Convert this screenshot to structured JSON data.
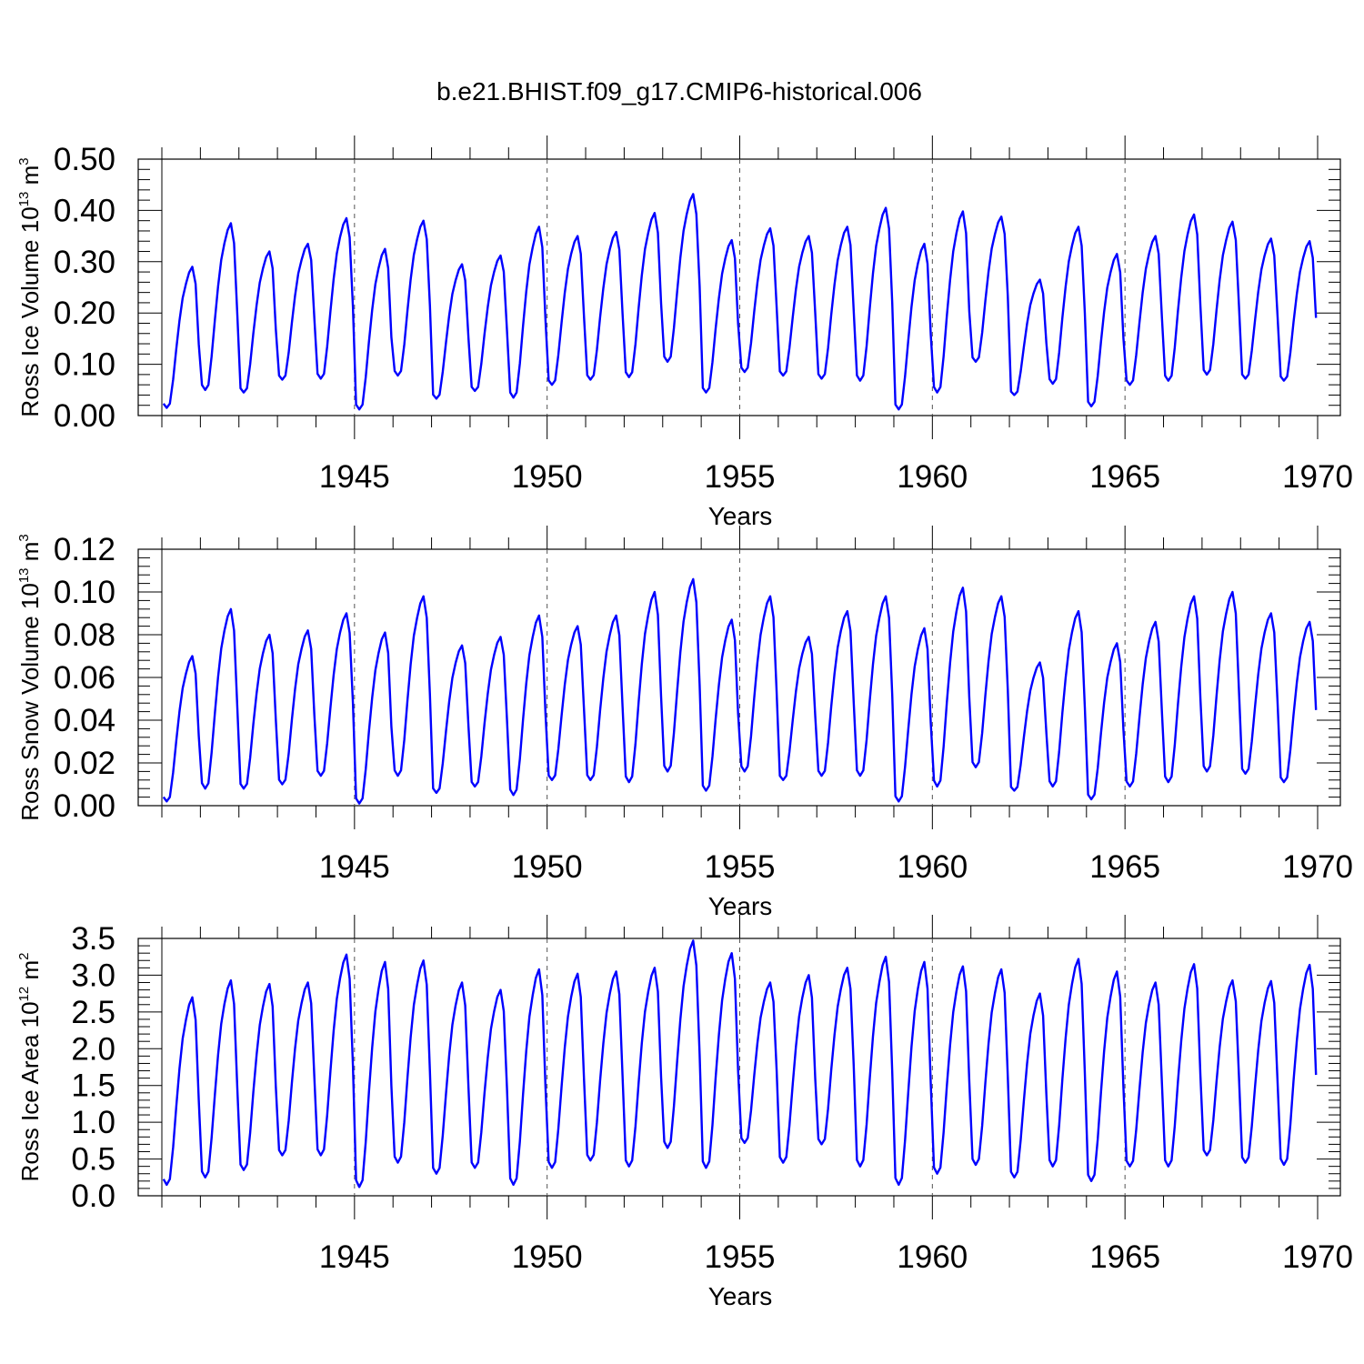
{
  "figure": {
    "title": "b.e21.BHIST.f09_g17.CMIP6-historical.006",
    "line_color": "#0000ff"
  },
  "chart_data": [
    {
      "type": "line",
      "title": "b.e21.BHIST.f09_g17.CMIP6-historical.006",
      "ylabel": "Ross Ice Volume",
      "ylabel_unit": {
        "base": "10",
        "exp": "13",
        "unit": "m",
        "unit_exp": "3"
      },
      "xlabel": "Years",
      "xlim": [
        1940,
        1970
      ],
      "ylim": [
        0,
        0.5
      ],
      "xticks": [
        1945,
        1950,
        1955,
        1960,
        1965,
        1970
      ],
      "xtick_labels": [
        "1945",
        "1950",
        "1955",
        "1960",
        "1965",
        "1970"
      ],
      "yticks": [
        0,
        0.1,
        0.2,
        0.3,
        0.4,
        0.5
      ],
      "ytick_labels": [
        "0.00",
        "0.10",
        "0.20",
        "0.30",
        "0.40",
        "0.50"
      ],
      "grid": "vertical dashed at labeled years",
      "series": [
        {
          "name": "Ross Ice Volume",
          "color": "#0000ff",
          "minima": [
            0.015,
            0.05,
            0.045,
            0.07,
            0.072,
            0.012,
            0.078,
            0.033,
            0.048,
            0.035,
            0.06,
            0.07,
            0.075,
            0.105,
            0.045,
            0.085,
            0.078,
            0.072,
            0.068,
            0.012,
            0.045,
            0.105,
            0.04,
            0.062,
            0.018,
            0.06,
            0.068,
            0.08,
            0.072,
            0.068
          ],
          "maxima": [
            0.29,
            0.375,
            0.32,
            0.335,
            0.385,
            0.325,
            0.38,
            0.295,
            0.312,
            0.368,
            0.35,
            0.358,
            0.395,
            0.432,
            0.342,
            0.365,
            0.35,
            0.368,
            0.405,
            0.335,
            0.398,
            0.388,
            0.265,
            0.368,
            0.315,
            0.35,
            0.392,
            0.378,
            0.345,
            0.34
          ]
        }
      ]
    },
    {
      "type": "line",
      "ylabel": "Ross Snow Volume",
      "ylabel_unit": {
        "base": "10",
        "exp": "13",
        "unit": "m",
        "unit_exp": "3"
      },
      "xlabel": "Years",
      "xlim": [
        1940,
        1970
      ],
      "ylim": [
        0,
        0.12
      ],
      "xticks": [
        1945,
        1950,
        1955,
        1960,
        1965,
        1970
      ],
      "xtick_labels": [
        "1945",
        "1950",
        "1955",
        "1960",
        "1965",
        "1970"
      ],
      "yticks": [
        0,
        0.02,
        0.04,
        0.06,
        0.08,
        0.1,
        0.12
      ],
      "ytick_labels": [
        "0.00",
        "0.02",
        "0.04",
        "0.06",
        "0.08",
        "0.10",
        "0.12"
      ],
      "grid": "vertical dashed at labeled years",
      "series": [
        {
          "name": "Ross Snow Volume",
          "color": "#0000ff",
          "minima": [
            0.002,
            0.008,
            0.008,
            0.01,
            0.014,
            0.001,
            0.014,
            0.006,
            0.009,
            0.005,
            0.012,
            0.012,
            0.011,
            0.016,
            0.007,
            0.016,
            0.012,
            0.014,
            0.014,
            0.002,
            0.009,
            0.018,
            0.007,
            0.009,
            0.003,
            0.009,
            0.011,
            0.016,
            0.015,
            0.011
          ],
          "maxima": [
            0.07,
            0.092,
            0.08,
            0.082,
            0.09,
            0.081,
            0.098,
            0.075,
            0.079,
            0.089,
            0.084,
            0.089,
            0.1,
            0.106,
            0.087,
            0.098,
            0.079,
            0.091,
            0.098,
            0.083,
            0.102,
            0.098,
            0.067,
            0.091,
            0.076,
            0.086,
            0.098,
            0.1,
            0.09,
            0.086
          ]
        }
      ]
    },
    {
      "type": "line",
      "ylabel": "Ross Ice Area",
      "ylabel_unit": {
        "base": "10",
        "exp": "12",
        "unit": "m",
        "unit_exp": "2"
      },
      "xlabel": "Years",
      "xlim": [
        1940,
        1970
      ],
      "ylim": [
        0,
        3.5
      ],
      "xticks": [
        1945,
        1950,
        1955,
        1960,
        1965,
        1970
      ],
      "xtick_labels": [
        "1945",
        "1950",
        "1955",
        "1960",
        "1965",
        "1970"
      ],
      "yticks": [
        0,
        0.5,
        1,
        1.5,
        2,
        2.5,
        3,
        3.5
      ],
      "ytick_labels": [
        "0.0",
        "0.5",
        "1.0",
        "1.5",
        "2.0",
        "2.5",
        "3.0",
        "3.5"
      ],
      "grid": "vertical dashed at labeled years",
      "series": [
        {
          "name": "Ross Ice Area",
          "color": "#0000ff",
          "minima": [
            0.15,
            0.25,
            0.35,
            0.55,
            0.55,
            0.12,
            0.45,
            0.3,
            0.38,
            0.15,
            0.38,
            0.48,
            0.4,
            0.65,
            0.38,
            0.72,
            0.45,
            0.7,
            0.4,
            0.15,
            0.3,
            0.42,
            0.25,
            0.4,
            0.2,
            0.4,
            0.4,
            0.55,
            0.45,
            0.42
          ],
          "maxima": [
            2.7,
            2.93,
            2.88,
            2.9,
            3.28,
            3.18,
            3.2,
            2.9,
            2.8,
            3.08,
            3.02,
            3.05,
            3.1,
            3.47,
            3.3,
            2.9,
            3.0,
            3.1,
            3.25,
            3.18,
            3.12,
            3.08,
            2.75,
            3.22,
            3.05,
            2.9,
            3.15,
            2.93,
            2.92,
            3.14
          ]
        }
      ]
    }
  ]
}
